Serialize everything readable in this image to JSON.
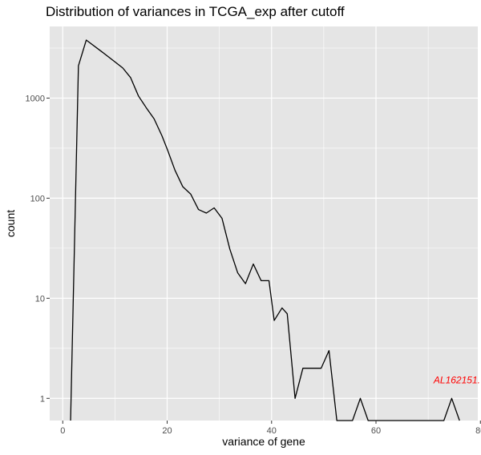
{
  "chart_data": {
    "type": "line",
    "title": "Distribution of variances in TCGA_exp after cutoff",
    "xlabel": "variance of gene",
    "ylabel": "count",
    "x_scale": "linear",
    "y_scale": "log10",
    "xlim": [
      -2.5,
      79.5
    ],
    "ylim": [
      0.6,
      5200
    ],
    "x_ticks": [
      0,
      20,
      40,
      60,
      80
    ],
    "x_tick_labels": [
      "0",
      "20",
      "40",
      "60",
      "80"
    ],
    "y_ticks": [
      1,
      10,
      100,
      1000
    ],
    "y_tick_labels": [
      "1",
      "10",
      "100",
      "1000"
    ],
    "grid": true,
    "line_color": "#000000",
    "series": [
      {
        "name": "count",
        "x": [
          1.5,
          3.0,
          4.5,
          7.5,
          10.0,
          11.5,
          13.0,
          14.5,
          16.0,
          17.5,
          19.0,
          20.0,
          21.5,
          23.0,
          24.5,
          26.0,
          27.5,
          29.0,
          30.5,
          32.0,
          33.5,
          35.0,
          36.5,
          38.0,
          39.5,
          40.5,
          42.0,
          43.0,
          44.5,
          46.0,
          49.5,
          51.0,
          52.5,
          55.5,
          57.0,
          58.5,
          73.0,
          74.5,
          76.0
        ],
        "values": [
          0.6,
          2100,
          3800,
          2900,
          2300,
          2000,
          1600,
          1050,
          800,
          620,
          420,
          310,
          190,
          130,
          110,
          77,
          71,
          80,
          63,
          31,
          18,
          14,
          22,
          15,
          15,
          6,
          8,
          7,
          1,
          2,
          2,
          3,
          0.6,
          0.6,
          1,
          0.6,
          0.6,
          1,
          0.6
        ]
      }
    ],
    "annotations": [
      {
        "text": "AL162151.",
        "x": 75.5,
        "y": 1.42,
        "color": "#ff0000"
      }
    ],
    "panel_background": "#e5e5e5",
    "grid_color": "#ffffff"
  }
}
